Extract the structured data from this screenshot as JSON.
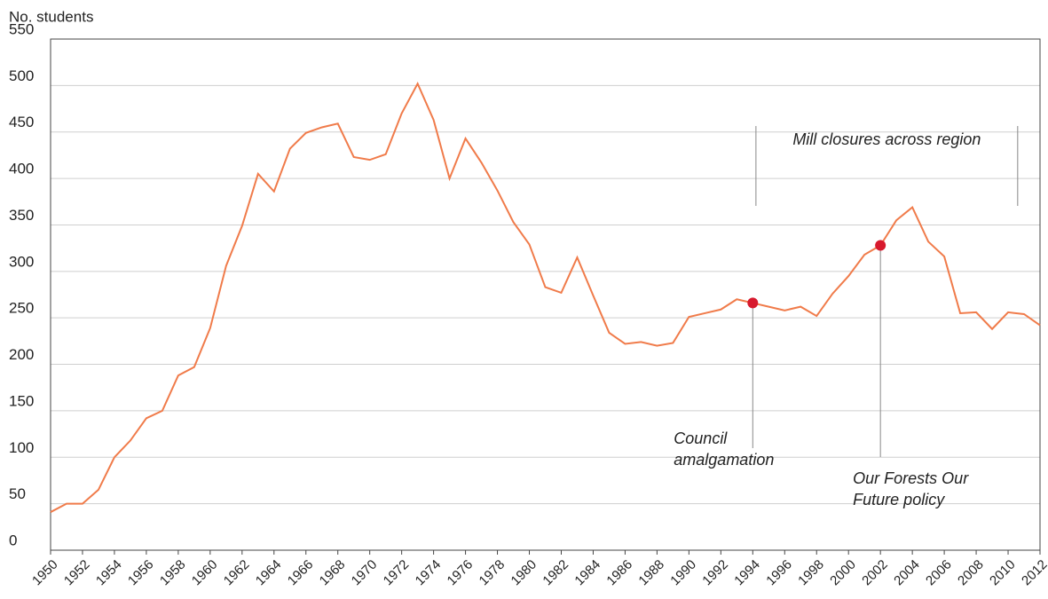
{
  "chart_data": {
    "type": "line",
    "y_label": "No. students",
    "x": [
      1950,
      1951,
      1952,
      1953,
      1954,
      1955,
      1956,
      1957,
      1958,
      1959,
      1960,
      1961,
      1962,
      1963,
      1964,
      1965,
      1966,
      1967,
      1968,
      1969,
      1970,
      1971,
      1972,
      1973,
      1974,
      1975,
      1976,
      1977,
      1978,
      1979,
      1980,
      1981,
      1982,
      1983,
      1984,
      1985,
      1986,
      1987,
      1988,
      1989,
      1990,
      1991,
      1992,
      1993,
      1994,
      1995,
      1996,
      1997,
      1998,
      1999,
      2000,
      2001,
      2002,
      2003,
      2004,
      2005,
      2006,
      2007,
      2008,
      2009,
      2010,
      2011,
      2012
    ],
    "series": [
      {
        "name": "No. students",
        "color": "#f07b4a",
        "values": [
          41,
          50,
          50,
          65,
          100,
          118,
          142,
          150,
          188,
          197,
          239,
          306,
          349,
          405,
          386,
          432,
          449,
          455,
          459,
          423,
          420,
          426,
          470,
          502,
          463,
          400,
          443,
          417,
          387,
          353,
          329,
          283,
          277,
          315,
          274,
          234,
          222,
          224,
          220,
          223,
          251,
          255,
          259,
          270,
          266,
          262,
          258,
          262,
          252,
          276,
          295,
          318,
          328,
          355,
          369,
          332,
          316,
          255,
          256,
          238,
          256,
          254,
          242
        ]
      }
    ],
    "xlim": [
      1950,
      2012
    ],
    "xticks": [
      1950,
      1952,
      1954,
      1956,
      1958,
      1960,
      1962,
      1964,
      1966,
      1968,
      1970,
      1972,
      1974,
      1976,
      1978,
      1980,
      1982,
      1984,
      1986,
      1988,
      1990,
      1992,
      1994,
      1996,
      1998,
      2000,
      2002,
      2004,
      2006,
      2008,
      2010,
      2012
    ],
    "ylim": [
      0,
      550
    ],
    "yticks": [
      0,
      50,
      100,
      150,
      200,
      250,
      300,
      350,
      400,
      450,
      500,
      550
    ],
    "grid": true,
    "annotations": [
      {
        "lines": [
          "Council",
          "amalgamation"
        ],
        "x": 1994,
        "color": "#d7192d"
      },
      {
        "lines": [
          "Our Forests Our",
          "Future policy"
        ],
        "x": 2002,
        "color": "#d7192d"
      },
      {
        "lines": [
          "Mill closures across region"
        ],
        "x_range": [
          1994.2,
          2010.6
        ]
      }
    ]
  }
}
